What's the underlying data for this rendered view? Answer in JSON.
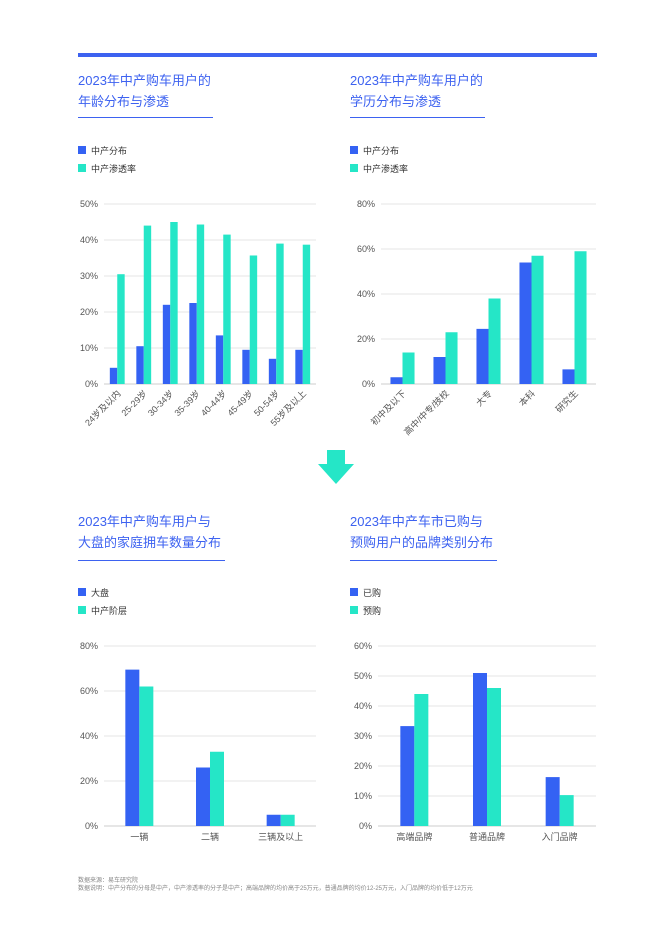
{
  "colors": {
    "accent": "#3d62f0",
    "series1": "#3462f3",
    "series2": "#25e6c7",
    "arrow": "#25e6c7",
    "grid": "#e6e6e6"
  },
  "panels": [
    {
      "title_line1": "2023年中产购车用户的",
      "title_line2": "年龄分布与渗透",
      "legend": [
        "中产分布",
        "中产渗透率"
      ]
    },
    {
      "title_line1": "2023年中产购车用户的",
      "title_line2": "学历分布与渗透",
      "legend": [
        "中产分布",
        "中产渗透率"
      ]
    },
    {
      "title_line1": "2023年中产购车用户与",
      "title_line2": "大盘的家庭拥车数量分布",
      "legend": [
        "大盘",
        "中产阶层"
      ]
    },
    {
      "title_line1": "2023年中产车市已购与",
      "title_line2": "预购用户的品牌类别分布",
      "legend": [
        "已购",
        "预购"
      ]
    }
  ],
  "chart_data": [
    {
      "type": "bar",
      "categories": [
        "24岁及以内",
        "25-29岁",
        "30-34岁",
        "35-39岁",
        "40-44岁",
        "45-49岁",
        "50-54岁",
        "55岁及以上"
      ],
      "series": [
        {
          "name": "中产分布",
          "values": [
            4.5,
            10.5,
            22,
            22.5,
            13.5,
            9.5,
            7,
            9.5
          ]
        },
        {
          "name": "中产渗透率",
          "values": [
            30.5,
            44,
            45,
            44.3,
            41.5,
            35.7,
            39,
            38.7
          ]
        }
      ],
      "ylim": [
        0,
        50
      ],
      "yticks": [
        "0%",
        "10%",
        "20%",
        "30%",
        "40%",
        "50%"
      ],
      "rotate_labels": true,
      "grid": true
    },
    {
      "type": "bar",
      "categories": [
        "初中及以下",
        "高中/中专/技校",
        "大专",
        "本科",
        "研究生"
      ],
      "series": [
        {
          "name": "中产分布",
          "values": [
            3,
            12,
            24.5,
            54,
            6.5
          ]
        },
        {
          "name": "中产渗透率",
          "values": [
            14,
            23,
            38,
            57,
            59
          ]
        }
      ],
      "ylim": [
        0,
        80
      ],
      "yticks": [
        "0%",
        "20%",
        "40%",
        "60%",
        "80%"
      ],
      "rotate_labels": true,
      "grid": true
    },
    {
      "type": "bar",
      "categories": [
        "一辆",
        "二辆",
        "三辆及以上"
      ],
      "series": [
        {
          "name": "大盘",
          "values": [
            69.5,
            26,
            5
          ]
        },
        {
          "name": "中产阶层",
          "values": [
            62,
            33,
            5
          ]
        }
      ],
      "ylim": [
        0,
        80
      ],
      "yticks": [
        "0%",
        "20%",
        "40%",
        "60%",
        "80%"
      ],
      "rotate_labels": false,
      "grid": true
    },
    {
      "type": "bar",
      "categories": [
        "高端品牌",
        "普通品牌",
        "入门品牌"
      ],
      "series": [
        {
          "name": "已购",
          "values": [
            33.3,
            51,
            16.3
          ]
        },
        {
          "name": "预购",
          "values": [
            44,
            46,
            10.3
          ]
        }
      ],
      "ylim": [
        0,
        60
      ],
      "yticks": [
        "0%",
        "10%",
        "20%",
        "30%",
        "40%",
        "50%",
        "60%"
      ],
      "rotate_labels": false,
      "grid": true
    }
  ],
  "footer": {
    "source": "数据来源：易车研究院",
    "note": "数据说明：中产分布的分母是中产，中产渗透率的分子是中产；高端品牌的均价高于25万元，普通品牌的均价12-25万元，入门品牌的均价低于12万元"
  }
}
